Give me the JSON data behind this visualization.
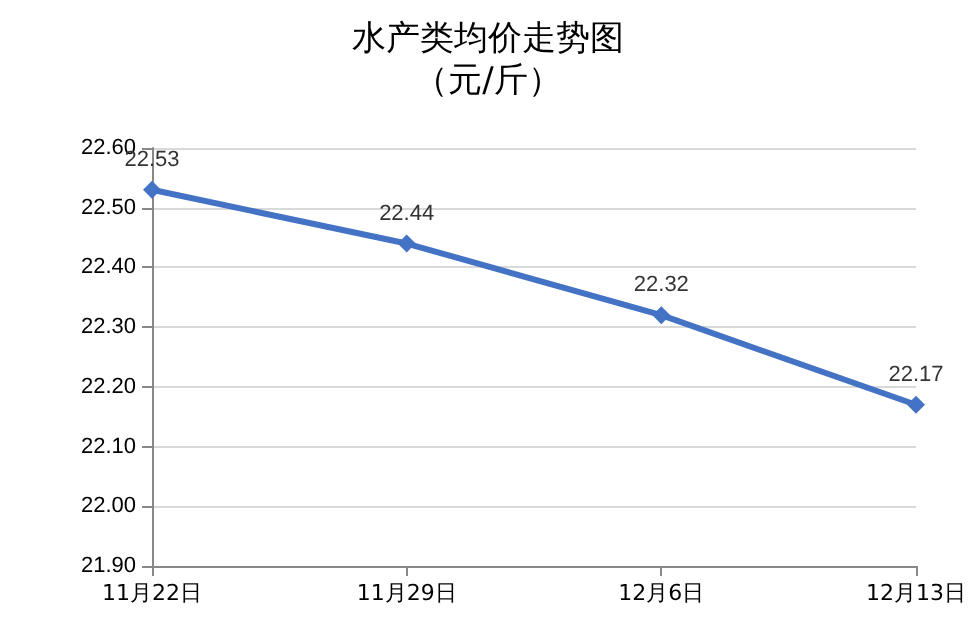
{
  "chart_data": {
    "type": "line",
    "title": "水产类均价走势图",
    "subtitle": "（元/斤）",
    "categories": [
      "11月22日",
      "11月29日",
      "12月6日",
      "12月13日"
    ],
    "series": [
      {
        "color": "#4472c4",
        "values": [
          22.53,
          22.44,
          22.32,
          22.17
        ]
      }
    ],
    "ylim": [
      21.9,
      22.6
    ],
    "yticks": [
      {
        "value": 21.9,
        "label": "21.90"
      },
      {
        "value": 22.0,
        "label": "22.00"
      },
      {
        "value": 22.1,
        "label": "22.10"
      },
      {
        "value": 22.2,
        "label": "22.20"
      },
      {
        "value": 22.3,
        "label": "22.30"
      },
      {
        "value": 22.4,
        "label": "22.40"
      },
      {
        "value": 22.5,
        "label": "22.50"
      },
      {
        "value": 22.6,
        "label": "22.60"
      }
    ],
    "grid": "y",
    "marker": "diamond",
    "line_style": "solid",
    "data_labels": true
  }
}
